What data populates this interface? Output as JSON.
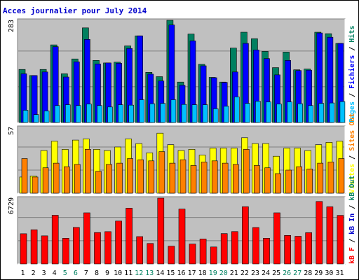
{
  "chart_data": {
    "type": "bar",
    "title": "Acces journalier pour July 2014",
    "days": [
      "1",
      "2",
      "3",
      "4",
      "5",
      "6",
      "7",
      "8",
      "9",
      "10",
      "11",
      "12",
      "13",
      "14",
      "15",
      "16",
      "17",
      "18",
      "19",
      "20",
      "21",
      "22",
      "23",
      "24",
      "25",
      "26",
      "27",
      "28",
      "29",
      "30",
      "31"
    ],
    "weekend_days": [
      "5",
      "6",
      "12",
      "13",
      "19",
      "20",
      "26",
      "27"
    ],
    "colors": {
      "title": "#0000cc",
      "weekday_label": "#000000",
      "weekend_label": "#008060",
      "plot_bg": "#c0c0c0",
      "grid": "#808080",
      "pages": "#00c0ff",
      "files": "#0000ff",
      "hits": "#008060",
      "visits": "#ffff00",
      "sites": "#ff8000",
      "kb": "#ff0000"
    },
    "panels": [
      {
        "id": "hits-panel",
        "ymax_label": "283",
        "ylim": [
          0,
          283
        ],
        "gridlines": [
          198,
          99
        ],
        "side_legend": [
          {
            "text": "Pages",
            "color": "#00c0ff"
          },
          {
            "text": " / ",
            "color": "#000000"
          },
          {
            "text": "Fichiers",
            "color": "#0000ff"
          },
          {
            "text": " / ",
            "color": "#000000"
          },
          {
            "text": "Hits",
            "color": "#008060"
          }
        ],
        "series": [
          {
            "name": "Hits",
            "color": "#008060",
            "values": [
              147,
              130,
              147,
              215,
              135,
              176,
              262,
              172,
              165,
              167,
              212,
              240,
              139,
              127,
              283,
              112,
              245,
              161,
              125,
              112,
              206,
              250,
              232,
              197,
              152,
              195,
              146,
              148,
              250,
              246,
              219
            ]
          },
          {
            "name": "Fichiers",
            "color": "#0000ff",
            "values": [
              135,
              130,
              140,
              210,
              126,
              168,
              230,
              162,
              165,
              164,
              205,
              240,
              134,
              115,
              270,
              103,
              226,
              157,
              124,
              111,
              140,
              219,
              201,
              177,
              132,
              172,
              144,
              145,
              248,
              236,
              219
            ]
          },
          {
            "name": "Pages",
            "color": "#00c0ff",
            "values": [
              34,
              22,
              32,
              47,
              49,
              47,
              51,
              47,
              43,
              49,
              48,
              63,
              52,
              53,
              63,
              50,
              49,
              49,
              38,
              45,
              71,
              53,
              59,
              57,
              51,
              57,
              52,
              47,
              53,
              54,
              58
            ]
          }
        ]
      },
      {
        "id": "visits-panel",
        "ymax_label": "57",
        "ylim": [
          0,
          57
        ],
        "gridlines": [
          40,
          20
        ],
        "side_legend": [
          {
            "text": "Visites",
            "color": "#ffff00"
          },
          {
            "text": " / ",
            "color": "#000000"
          },
          {
            "text": "Sites",
            "color": "#ff8000"
          },
          {
            "text": " Out",
            "color": "#ff8000"
          }
        ],
        "series": [
          {
            "name": "Visites",
            "color": "#ffff00",
            "values": [
              14,
              15,
              37,
              45,
              38,
              46,
              47,
              38,
              37,
              40,
              47,
              43,
              35,
              52,
              42,
              37,
              38,
              33,
              39,
              39,
              39,
              48,
              43,
              43,
              32,
              39,
              39,
              37,
              42,
              44,
              45
            ]
          },
          {
            "name": "Sites",
            "color": "#ff8000",
            "values": [
              30,
              14,
              22,
              26,
              23,
              25,
              38,
              19,
              25,
              26,
              30,
              29,
              28,
              36,
              26,
              29,
              24,
              27,
              28,
              26,
              25,
              38,
              24,
              22,
              17,
              20,
              23,
              21,
              26,
              27,
              30
            ]
          }
        ]
      },
      {
        "id": "kb-panel",
        "ymax_label": "6729",
        "ylim": [
          0,
          6729
        ],
        "gridlines": [
          4750,
          2375
        ],
        "side_legend": [
          {
            "text": "kB F",
            "color": "#ff0000"
          },
          {
            "text": " / ",
            "color": "#000000"
          },
          {
            "text": "kB In",
            "color": "#0000cc"
          },
          {
            "text": " / ",
            "color": "#000000"
          },
          {
            "text": "kB Out",
            "color": "#008060"
          }
        ],
        "series": [
          {
            "name": "kB F",
            "color": "#ff0000",
            "values": [
              3085,
              3491,
              2874,
              4973,
              2629,
              3729,
              5228,
              3208,
              3303,
              4381,
              5698,
              2794,
              2092,
              6729,
              1808,
              5608,
              2030,
              2548,
              1734,
              3103,
              3310,
              5848,
              3722,
              2629,
              5223,
              2915,
              2827,
              3194,
              6382,
              5841,
              4963
            ]
          }
        ]
      }
    ]
  }
}
